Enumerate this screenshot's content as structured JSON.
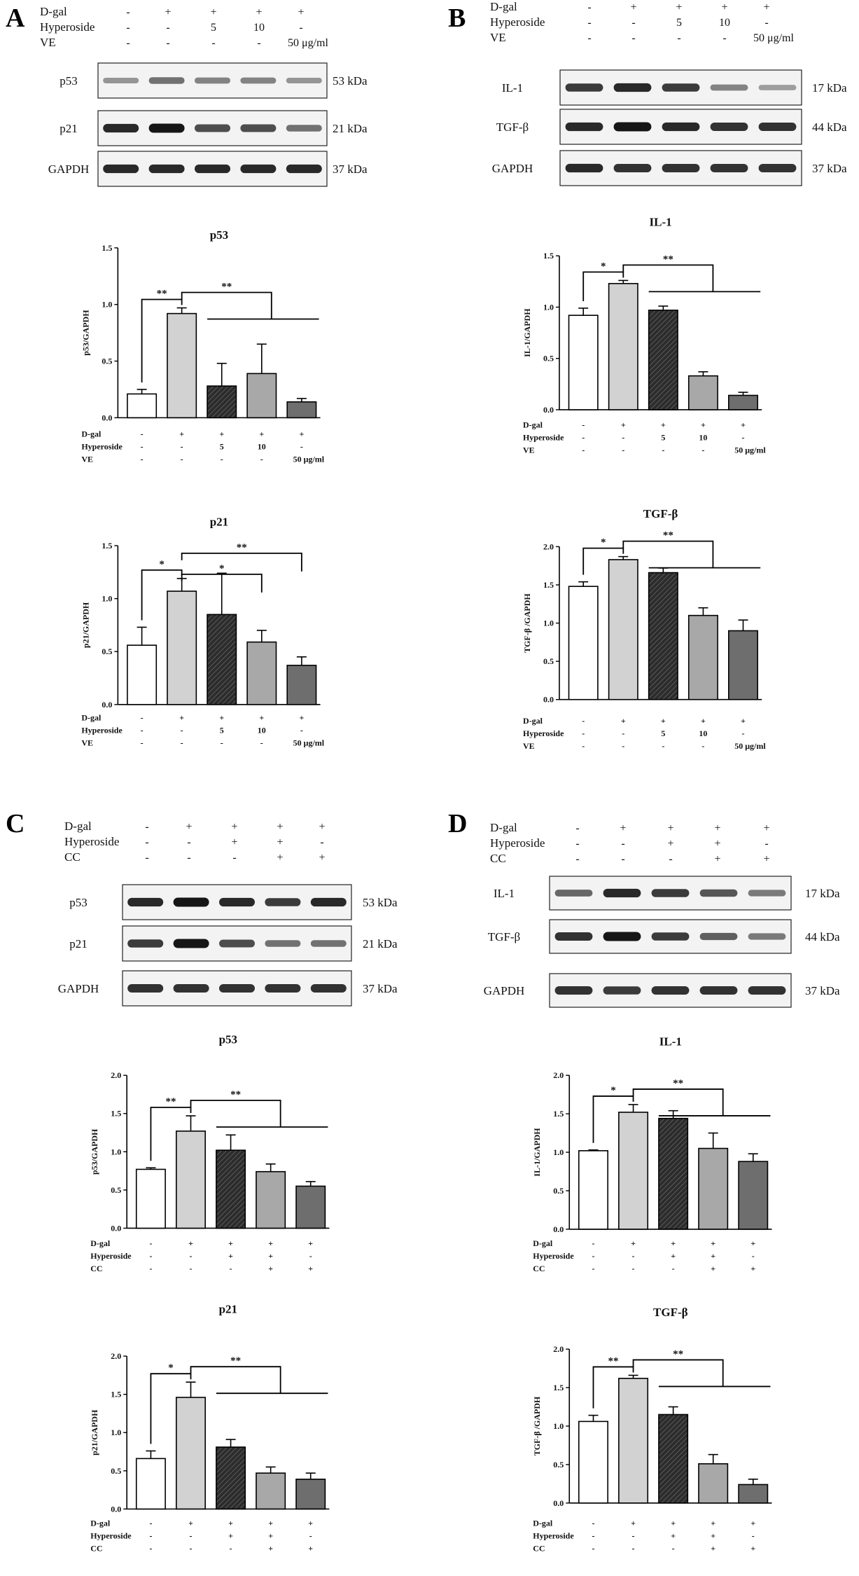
{
  "panels": [
    {
      "letter": "A",
      "labels": [
        {
          "name": "D-gal",
          "values": [
            "-",
            "+",
            "+",
            "+",
            "+"
          ]
        },
        {
          "name": "Hyperoside",
          "values": [
            "-",
            "-",
            "5",
            "10",
            "-"
          ]
        },
        {
          "name": "VE",
          "values": [
            "-",
            "-",
            "-",
            "-",
            "50 μg/ml"
          ]
        }
      ],
      "blots": [
        {
          "protein": "p53",
          "size": "53 kDa",
          "intensity": [
            0.3,
            0.5,
            0.4,
            0.4,
            0.3
          ]
        },
        {
          "protein": "p21",
          "size": "21 kDa",
          "intensity": [
            0.9,
            1.0,
            0.7,
            0.7,
            0.5
          ]
        },
        {
          "protein": "GAPDH",
          "size": "37 kDa",
          "intensity": [
            0.9,
            0.9,
            0.9,
            0.9,
            0.9
          ]
        }
      ]
    },
    {
      "letter": "B",
      "labels": [
        {
          "name": "D-gal",
          "values": [
            "-",
            "+",
            "+",
            "+",
            "+"
          ]
        },
        {
          "name": "Hyperoside",
          "values": [
            "-",
            "-",
            "5",
            "10",
            "-"
          ]
        },
        {
          "name": "VE",
          "values": [
            "-",
            "-",
            "-",
            "-",
            "50 μg/ml"
          ]
        }
      ],
      "blots": [
        {
          "protein": "IL-1",
          "size": "17 kDa",
          "intensity": [
            0.8,
            0.9,
            0.8,
            0.4,
            0.25
          ]
        },
        {
          "protein": "TGF-β",
          "size": "44 kDa",
          "intensity": [
            0.9,
            1.0,
            0.9,
            0.85,
            0.85
          ]
        },
        {
          "protein": "GAPDH",
          "size": "37 kDa",
          "intensity": [
            0.9,
            0.85,
            0.85,
            0.85,
            0.85
          ]
        }
      ]
    },
    {
      "letter": "C",
      "labels": [
        {
          "name": "D-gal",
          "values": [
            "-",
            "+",
            "+",
            "+",
            "+"
          ]
        },
        {
          "name": "Hyperoside",
          "values": [
            "-",
            "-",
            "+",
            "+",
            "-"
          ]
        },
        {
          "name": "CC",
          "values": [
            "-",
            "-",
            "-",
            "+",
            "+"
          ]
        }
      ],
      "blots": [
        {
          "protein": "p53",
          "size": "53 kDa",
          "intensity": [
            0.9,
            1.0,
            0.9,
            0.8,
            0.9
          ]
        },
        {
          "protein": "p21",
          "size": "21 kDa",
          "intensity": [
            0.8,
            1.0,
            0.7,
            0.5,
            0.5
          ]
        },
        {
          "protein": "GAPDH",
          "size": "37 kDa",
          "intensity": [
            0.85,
            0.85,
            0.85,
            0.85,
            0.85
          ]
        }
      ]
    },
    {
      "letter": "D",
      "labels": [
        {
          "name": "D-gal",
          "values": [
            "-",
            "+",
            "+",
            "+",
            "+"
          ]
        },
        {
          "name": "Hyperoside",
          "values": [
            "-",
            "-",
            "+",
            "+",
            "-"
          ]
        },
        {
          "name": "CC",
          "values": [
            "-",
            "-",
            "-",
            "+",
            "+"
          ]
        }
      ],
      "blots": [
        {
          "protein": "IL-1",
          "size": "17 kDa",
          "intensity": [
            0.55,
            0.9,
            0.8,
            0.65,
            0.45
          ]
        },
        {
          "protein": "TGF-β",
          "size": "44 kDa",
          "intensity": [
            0.85,
            1.0,
            0.8,
            0.6,
            0.45
          ]
        },
        {
          "protein": "GAPDH",
          "size": "37 kDa",
          "intensity": [
            0.85,
            0.8,
            0.85,
            0.85,
            0.85
          ]
        }
      ]
    }
  ],
  "bar_fills": [
    "#ffffff",
    "#d2d2d2",
    "#3a3a3a",
    "#a8a8a8",
    "#6e6e6e"
  ],
  "chart_data": [
    {
      "type": "bar",
      "panel": "A",
      "title": "p53",
      "ylabel": "p53/GAPDH",
      "ylim": [
        0,
        1.5
      ],
      "yticks": [
        "0.0",
        "0.5",
        "1.0",
        "1.5"
      ],
      "categories": [
        "1",
        "2",
        "3",
        "4",
        "5"
      ],
      "values": [
        0.21,
        0.92,
        0.28,
        0.39,
        0.14
      ],
      "errors": [
        0.04,
        0.05,
        0.2,
        0.26,
        0.03
      ],
      "xlabels": [
        {
          "name": "D-gal",
          "values": [
            "-",
            "+",
            "+",
            "+",
            "+"
          ]
        },
        {
          "name": "Hyperoside",
          "values": [
            "-",
            "-",
            "5",
            "10",
            "-"
          ]
        },
        {
          "name": "VE",
          "values": [
            "-",
            "-",
            "-",
            "-",
            "50 μg/ml"
          ]
        }
      ],
      "significance": [
        {
          "from": 0,
          "to": 1,
          "label": "**"
        },
        {
          "from": 1,
          "to": [
            2,
            3,
            4
          ],
          "label": "**"
        }
      ]
    },
    {
      "type": "bar",
      "panel": "A",
      "title": "p21",
      "ylabel": "p21/GAPDH",
      "ylim": [
        0,
        1.5
      ],
      "yticks": [
        "0.0",
        "0.5",
        "1.0",
        "1.5"
      ],
      "categories": [
        "1",
        "2",
        "3",
        "4",
        "5"
      ],
      "values": [
        0.56,
        1.07,
        0.85,
        0.59,
        0.37
      ],
      "errors": [
        0.17,
        0.12,
        0.39,
        0.11,
        0.08
      ],
      "xlabels": [
        {
          "name": "D-gal",
          "values": [
            "-",
            "+",
            "+",
            "+",
            "+"
          ]
        },
        {
          "name": "Hyperoside",
          "values": [
            "-",
            "-",
            "5",
            "10",
            "-"
          ]
        },
        {
          "name": "VE",
          "values": [
            "-",
            "-",
            "-",
            "-",
            "50 μg/ml"
          ]
        }
      ],
      "significance": [
        {
          "from": 0,
          "to": 1,
          "label": "*"
        },
        {
          "from": 1,
          "to": 3,
          "label": "*"
        },
        {
          "from": 1,
          "to": 4,
          "label": "**"
        }
      ]
    },
    {
      "type": "bar",
      "panel": "B",
      "title": "IL-1",
      "ylabel": "IL-1/GAPDH",
      "ylim": [
        0,
        1.5
      ],
      "yticks": [
        "0.0",
        "0.5",
        "1.0",
        "1.5"
      ],
      "categories": [
        "1",
        "2",
        "3",
        "4",
        "5"
      ],
      "values": [
        0.92,
        1.23,
        0.97,
        0.33,
        0.14
      ],
      "errors": [
        0.07,
        0.03,
        0.04,
        0.04,
        0.03
      ],
      "xlabels": [
        {
          "name": "D-gal",
          "values": [
            "-",
            "+",
            "+",
            "+",
            "+"
          ]
        },
        {
          "name": "Hyperoside",
          "values": [
            "-",
            "-",
            "5",
            "10",
            "-"
          ]
        },
        {
          "name": "VE",
          "values": [
            "-",
            "-",
            "-",
            "-",
            "50 μg/ml"
          ]
        }
      ],
      "significance": [
        {
          "from": 0,
          "to": 1,
          "label": "*"
        },
        {
          "from": 1,
          "to": [
            2,
            3,
            4
          ],
          "label": "**"
        }
      ]
    },
    {
      "type": "bar",
      "panel": "B",
      "title": "TGF-β",
      "ylabel": "TGF-β /GAPDH",
      "ylim": [
        0,
        2.0
      ],
      "yticks": [
        "0.0",
        "0.5",
        "1.0",
        "1.5",
        "2.0"
      ],
      "categories": [
        "1",
        "2",
        "3",
        "4",
        "5"
      ],
      "values": [
        1.48,
        1.83,
        1.66,
        1.1,
        0.9
      ],
      "errors": [
        0.06,
        0.04,
        0.06,
        0.1,
        0.14
      ],
      "xlabels": [
        {
          "name": "D-gal",
          "values": [
            "-",
            "+",
            "+",
            "+",
            "+"
          ]
        },
        {
          "name": "Hyperoside",
          "values": [
            "-",
            "-",
            "5",
            "10",
            "-"
          ]
        },
        {
          "name": "VE",
          "values": [
            "-",
            "-",
            "-",
            "-",
            "50 μg/ml"
          ]
        }
      ],
      "significance": [
        {
          "from": 0,
          "to": 1,
          "label": "*"
        },
        {
          "from": 1,
          "to": [
            2,
            3,
            4
          ],
          "label": "**"
        }
      ]
    },
    {
      "type": "bar",
      "panel": "C",
      "title": "p53",
      "ylabel": "p53/GAPDH",
      "ylim": [
        0,
        2.0
      ],
      "yticks": [
        "0.0",
        "0.5",
        "1.0",
        "1.5",
        "2.0"
      ],
      "categories": [
        "1",
        "2",
        "3",
        "4",
        "5"
      ],
      "values": [
        0.77,
        1.27,
        1.02,
        0.74,
        0.55
      ],
      "errors": [
        0.02,
        0.2,
        0.2,
        0.1,
        0.06
      ],
      "xlabels": [
        {
          "name": "D-gal",
          "values": [
            "-",
            "+",
            "+",
            "+",
            "+"
          ]
        },
        {
          "name": "Hyperoside",
          "values": [
            "-",
            "-",
            "+",
            "+",
            "-"
          ]
        },
        {
          "name": "CC",
          "values": [
            "-",
            "-",
            "-",
            "+",
            "+"
          ]
        }
      ],
      "significance": [
        {
          "from": 0,
          "to": 1,
          "label": "**"
        },
        {
          "from": 1,
          "to": [
            2,
            3,
            4
          ],
          "label": "**"
        }
      ]
    },
    {
      "type": "bar",
      "panel": "C",
      "title": "p21",
      "ylabel": "p21/GAPDH",
      "ylim": [
        0,
        2.0
      ],
      "yticks": [
        "0.0",
        "0.5",
        "1.0",
        "1.5",
        "2.0"
      ],
      "categories": [
        "1",
        "2",
        "3",
        "4",
        "5"
      ],
      "values": [
        0.66,
        1.46,
        0.81,
        0.47,
        0.39
      ],
      "errors": [
        0.1,
        0.2,
        0.1,
        0.08,
        0.08
      ],
      "xlabels": [
        {
          "name": "D-gal",
          "values": [
            "-",
            "+",
            "+",
            "+",
            "+"
          ]
        },
        {
          "name": "Hyperoside",
          "values": [
            "-",
            "-",
            "+",
            "+",
            "-"
          ]
        },
        {
          "name": "CC",
          "values": [
            "-",
            "-",
            "-",
            "+",
            "+"
          ]
        }
      ],
      "significance": [
        {
          "from": 0,
          "to": 1,
          "label": "*"
        },
        {
          "from": 1,
          "to": [
            2,
            3,
            4
          ],
          "label": "**"
        }
      ]
    },
    {
      "type": "bar",
      "panel": "D",
      "title": "IL-1",
      "ylabel": "IL-1/GAPDH",
      "ylim": [
        0,
        2.0
      ],
      "yticks": [
        "0.0",
        "0.5",
        "1.0",
        "1.5",
        "2.0"
      ],
      "categories": [
        "1",
        "2",
        "3",
        "4",
        "5"
      ],
      "values": [
        1.02,
        1.52,
        1.44,
        1.05,
        0.88
      ],
      "errors": [
        0.01,
        0.1,
        0.1,
        0.2,
        0.1
      ],
      "xlabels": [
        {
          "name": "D-gal",
          "values": [
            "-",
            "+",
            "+",
            "+",
            "+"
          ]
        },
        {
          "name": "Hyperoside",
          "values": [
            "-",
            "-",
            "+",
            "+",
            "-"
          ]
        },
        {
          "name": "CC",
          "values": [
            "-",
            "-",
            "-",
            "+",
            "+"
          ]
        }
      ],
      "significance": [
        {
          "from": 0,
          "to": 1,
          "label": "*"
        },
        {
          "from": 1,
          "to": [
            2,
            3,
            4
          ],
          "label": "**"
        }
      ]
    },
    {
      "type": "bar",
      "panel": "D",
      "title": "TGF-β",
      "ylabel": "TGF-β /GAPDH",
      "ylim": [
        0,
        2.0
      ],
      "yticks": [
        "0.0",
        "0.5",
        "1.0",
        "1.5",
        "2.0"
      ],
      "categories": [
        "1",
        "2",
        "3",
        "4",
        "5"
      ],
      "values": [
        1.06,
        1.62,
        1.15,
        0.51,
        0.24
      ],
      "errors": [
        0.08,
        0.04,
        0.1,
        0.12,
        0.07
      ],
      "xlabels": [
        {
          "name": "D-gal",
          "values": [
            "-",
            "+",
            "+",
            "+",
            "+"
          ]
        },
        {
          "name": "Hyperoside",
          "values": [
            "-",
            "-",
            "+",
            "+",
            "-"
          ]
        },
        {
          "name": "CC",
          "values": [
            "-",
            "-",
            "-",
            "+",
            "+"
          ]
        }
      ],
      "significance": [
        {
          "from": 0,
          "to": 1,
          "label": "**"
        },
        {
          "from": 1,
          "to": [
            2,
            3,
            4
          ],
          "label": "**"
        }
      ]
    }
  ]
}
